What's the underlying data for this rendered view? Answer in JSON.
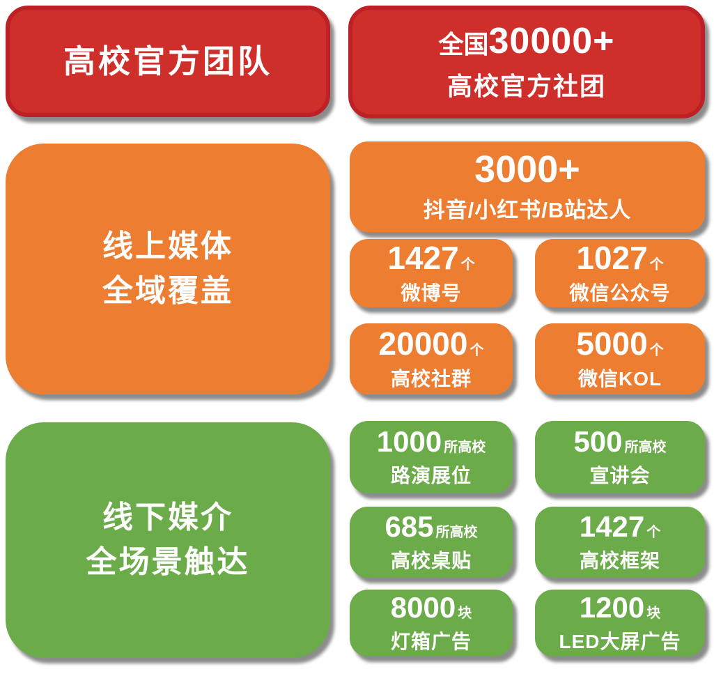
{
  "colors": {
    "red": "#CE2F2B",
    "red_border": "#BD2125",
    "orange": "#ED7D31",
    "green": "#6CAB4A",
    "text": "#FFFFFF",
    "background": "#FFFFFF"
  },
  "header": {
    "left_title": "高校官方团队",
    "right": {
      "prefix": "全国",
      "number": "30000+",
      "label": "高校官方社团"
    }
  },
  "online": {
    "title_lines": [
      "线上媒体",
      "全域覆盖"
    ],
    "big_card": {
      "number": "3000+",
      "label": "抖音/小红书/B站达人"
    },
    "cards": [
      {
        "number": "1427",
        "unit": "个",
        "label": "微博号"
      },
      {
        "number": "1027",
        "unit": "个",
        "label": "微信公众号"
      },
      {
        "number": "20000",
        "unit": "个",
        "label": "高校社群"
      },
      {
        "number": "5000",
        "unit": "个",
        "label": "微信KOL"
      }
    ]
  },
  "offline": {
    "title_lines": [
      "线下媒介",
      "全场景触达"
    ],
    "cards": [
      {
        "number": "1000",
        "unit": "所高校",
        "label": "路演展位"
      },
      {
        "number": "500",
        "unit": "所高校",
        "label": "宣讲会"
      },
      {
        "number": "685",
        "unit": "所高校",
        "label": "高校桌贴"
      },
      {
        "number": "1427",
        "unit": "个",
        "label": "高校框架"
      },
      {
        "number": "8000",
        "unit": "块",
        "label": "灯箱广告"
      },
      {
        "number": "1200",
        "unit": "块",
        "label": "LED大屏广告"
      }
    ]
  }
}
